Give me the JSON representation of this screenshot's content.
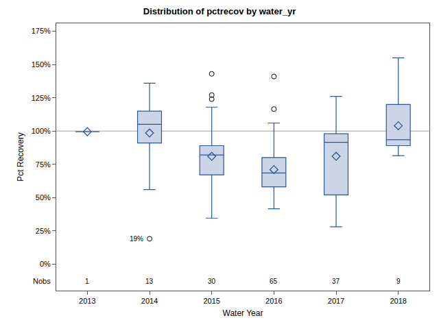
{
  "chart_data": {
    "type": "box",
    "title": "Distribution of pctrecov by water_yr",
    "x_label": "Water Year",
    "y_label": "Pct Recovery",
    "categories": [
      "2013",
      "2014",
      "2015",
      "2016",
      "2017",
      "2018"
    ],
    "q1": [
      99.5,
      91,
      67,
      58,
      52,
      89
    ],
    "median": [
      99.5,
      105,
      82,
      68.5,
      91.5,
      93.5
    ],
    "q3": [
      99.5,
      115,
      89,
      80,
      98,
      120
    ],
    "lower_whisker": [
      99.5,
      56,
      34.5,
      41.5,
      28,
      81.5
    ],
    "upper_whisker": [
      99.5,
      136,
      118,
      106,
      126,
      155
    ],
    "mean": [
      99.5,
      98.5,
      81,
      71,
      81,
      104
    ],
    "outliers": [
      [],
      [
        19
      ],
      [
        143,
        127,
        124
      ],
      [
        141,
        116.5
      ],
      [],
      []
    ],
    "outlier_labels": [
      {
        "category": "2014",
        "value": 19,
        "label": "19%"
      }
    ],
    "nobs_label": "Nobs",
    "nobs": [
      1,
      13,
      30,
      65,
      37,
      9
    ],
    "reference_line": 100,
    "color": "#2a5599",
    "fill_color": "#cbd5e6",
    "marker": "diamond",
    "ylim": [
      -20,
      181
    ],
    "yticks": [
      {
        "value": 0,
        "label": "0%"
      },
      {
        "value": 25,
        "label": "25%"
      },
      {
        "value": 50,
        "label": "50%"
      },
      {
        "value": 75,
        "label": "75%"
      },
      {
        "value": 100,
        "label": "100%"
      },
      {
        "value": 125,
        "label": "125%"
      },
      {
        "value": 150,
        "label": "150%"
      },
      {
        "value": 175,
        "label": "175%"
      }
    ],
    "grid": false
  }
}
